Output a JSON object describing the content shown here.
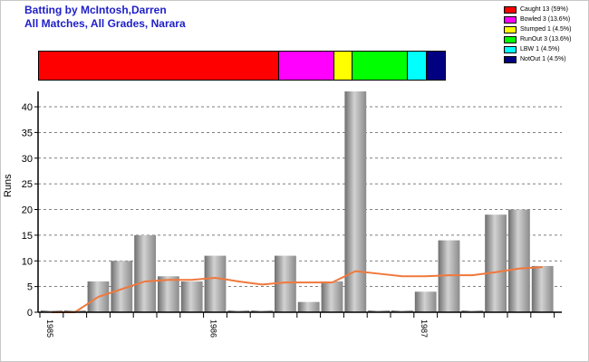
{
  "title": {
    "line1": "Batting by McIntosh,Darren",
    "line2": "All Matches, All Grades, Narara"
  },
  "legend": [
    {
      "label": "Caught 13 (59%)",
      "color": "#ff0000"
    },
    {
      "label": "Bowled 3 (13.6%)",
      "color": "#ff00ff"
    },
    {
      "label": "Stumped 1 (4.5%)",
      "color": "#ffff00"
    },
    {
      "label": "RunOut 3 (13.6%)",
      "color": "#00ff00"
    },
    {
      "label": "LBW 1 (4.5%)",
      "color": "#00ffff"
    },
    {
      "label": "NotOut 1 (4.5%)",
      "color": "#000080"
    }
  ],
  "dismissals": [
    {
      "name": "Caught",
      "count": 13,
      "color": "#ff0000"
    },
    {
      "name": "Bowled",
      "count": 3,
      "color": "#ff00ff"
    },
    {
      "name": "Stumped",
      "count": 1,
      "color": "#ffff00"
    },
    {
      "name": "RunOut",
      "count": 3,
      "color": "#00ff00"
    },
    {
      "name": "LBW",
      "count": 1,
      "color": "#00ffff"
    },
    {
      "name": "NotOut",
      "count": 1,
      "color": "#000080"
    }
  ],
  "chart_data": {
    "type": "bar",
    "ylabel": "Runs",
    "ylim": [
      0,
      43
    ],
    "yticks": [
      0,
      5,
      10,
      15,
      20,
      25,
      30,
      35,
      40
    ],
    "grid": true,
    "xtick_labels": [
      {
        "label": "1985",
        "index": 0
      },
      {
        "label": "1986",
        "index": 7
      },
      {
        "label": "1987",
        "index": 16
      }
    ],
    "series": [
      {
        "kind": "bar",
        "values": [
          0,
          0,
          6,
          10,
          15,
          7,
          6,
          11,
          0,
          0,
          11,
          2,
          6,
          43,
          0,
          0,
          4,
          14,
          0,
          19,
          20,
          9
        ]
      },
      {
        "kind": "line",
        "color": "#f0783c",
        "values": [
          0,
          0,
          3,
          4.5,
          6,
          6.3,
          6.3,
          6.7,
          6,
          5.4,
          5.8,
          5.8,
          5.8,
          8,
          7.5,
          7,
          7,
          7.2,
          7.2,
          7.8,
          8.5,
          8.8
        ]
      }
    ]
  }
}
